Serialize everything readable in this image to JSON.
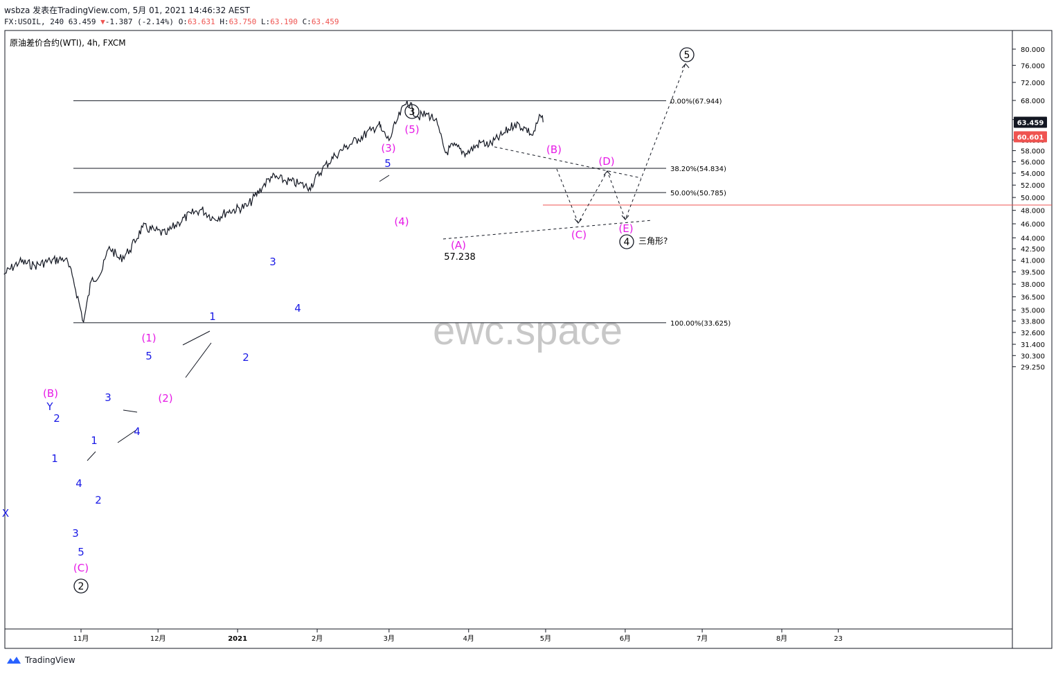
{
  "header": {
    "line1": "wsbza 发表在TradingView.com, 5月 01, 2021 14:46:32 AEST",
    "symbol": "FX:USOIL, 240",
    "last": "63.459",
    "arrow": "▼",
    "change": "-1.387 (-2.14%)",
    "o_label": "O:",
    "o": "63.631",
    "h_label": "H:",
    "h": "63.750",
    "l_label": "L:",
    "l": "63.190",
    "c_label": "C:",
    "c": "63.459",
    "title": "原油差价合约(WTI), 4h, FXCM"
  },
  "footer": {
    "brand": "TradingView"
  },
  "watermark": "ewc.space",
  "colors": {
    "candle": "#131722",
    "wave_blue": "#1a1ae6",
    "wave_magenta": "#e61ae6",
    "price_tag": "#131722",
    "red_line": "#ef5350"
  },
  "chart_data": {
    "type": "line",
    "title": "原油差价合约(WTI), 4h, FXCM",
    "y_axis_ticks": [
      "80.000",
      "76.000",
      "72.000",
      "68.000",
      "64.000",
      "60.000",
      "58.000",
      "56.000",
      "54.000",
      "52.000",
      "50.000",
      "48.000",
      "46.000",
      "44.000",
      "42.500",
      "41.000",
      "39.500",
      "38.000",
      "36.500",
      "35.000",
      "33.800",
      "32.600",
      "31.400",
      "30.300",
      "29.250"
    ],
    "x_axis_ticks": [
      "11月",
      "12月",
      "2021",
      "2月",
      "3月",
      "4月",
      "5月",
      "6月",
      "7月",
      "8月",
      "23"
    ],
    "y_scale": "log",
    "ylim": [
      28.6,
      82.5
    ],
    "price_tags": [
      {
        "label": "63.459",
        "value": 63.459,
        "style": "current"
      },
      {
        "label": "60.601",
        "value": 60.601,
        "style": "horizontal-line"
      }
    ],
    "fib_levels": [
      {
        "label": "0.00%(67.944)",
        "value": 67.944
      },
      {
        "label": "38.20%(54.834)",
        "value": 54.834
      },
      {
        "label": "50.00%(50.785)",
        "value": 50.785
      },
      {
        "label": "100.00%(33.625)",
        "value": 33.625
      }
    ],
    "series": [
      {
        "x": [
          "2020-10-02",
          "2020-10-08",
          "2020-10-14",
          "2020-10-20",
          "2020-10-26",
          "2020-10-29",
          "2020-11-02",
          "2020-11-05",
          "2020-11-09",
          "2020-11-12",
          "2020-11-16",
          "2020-11-20",
          "2020-11-25",
          "2020-11-30",
          "2020-12-04",
          "2020-12-09",
          "2020-12-14",
          "2020-12-18",
          "2020-12-23",
          "2020-12-28",
          "2021-01-05",
          "2021-01-11",
          "2021-01-14",
          "2021-01-19",
          "2021-01-25",
          "2021-01-29",
          "2021-02-03",
          "2021-02-08",
          "2021-02-12",
          "2021-02-17",
          "2021-02-22",
          "2021-02-25",
          "2021-02-26",
          "2021-03-01",
          "2021-03-04",
          "2021-03-08",
          "2021-03-12",
          "2021-03-16",
          "2021-03-19",
          "2021-03-23",
          "2021-03-26",
          "2021-03-31",
          "2021-04-06",
          "2021-04-09",
          "2021-04-14",
          "2021-04-19",
          "2021-04-23",
          "2021-04-26",
          "2021-04-29",
          "2021-04-30"
        ],
        "y": [
          39.2,
          40.8,
          40.3,
          40.9,
          41.2,
          38.6,
          33.7,
          38.4,
          39.5,
          42.8,
          41.1,
          42.3,
          45.5,
          45.0,
          44.5,
          46.2,
          47.5,
          48.1,
          46.7,
          47.8,
          48.7,
          51.9,
          53.4,
          52.8,
          52.2,
          51.6,
          54.7,
          57.1,
          58.6,
          60.2,
          61.8,
          63.1,
          61.9,
          59.9,
          63.7,
          67.94,
          64.6,
          65.1,
          64.0,
          57.6,
          58.9,
          57.5,
          59.6,
          59.0,
          60.9,
          63.2,
          62.3,
          60.9,
          64.8,
          63.46
        ]
      }
    ],
    "annotations": {
      "circled": [
        "3",
        "2",
        "4",
        "5"
      ],
      "magenta": [
        "(B)",
        "(C)",
        "(1)",
        "(2)",
        "(3)",
        "(4)",
        "(5)",
        "(A)",
        "(B)",
        "(C)",
        "(D)",
        "(E)"
      ],
      "blue": [
        "Y",
        "2",
        "1",
        "4",
        "1",
        "2",
        "3",
        "3",
        "4",
        "5",
        "1",
        "2",
        "3",
        "4",
        "5",
        "X"
      ],
      "text": [
        "57.238",
        "三角形?"
      ]
    }
  }
}
